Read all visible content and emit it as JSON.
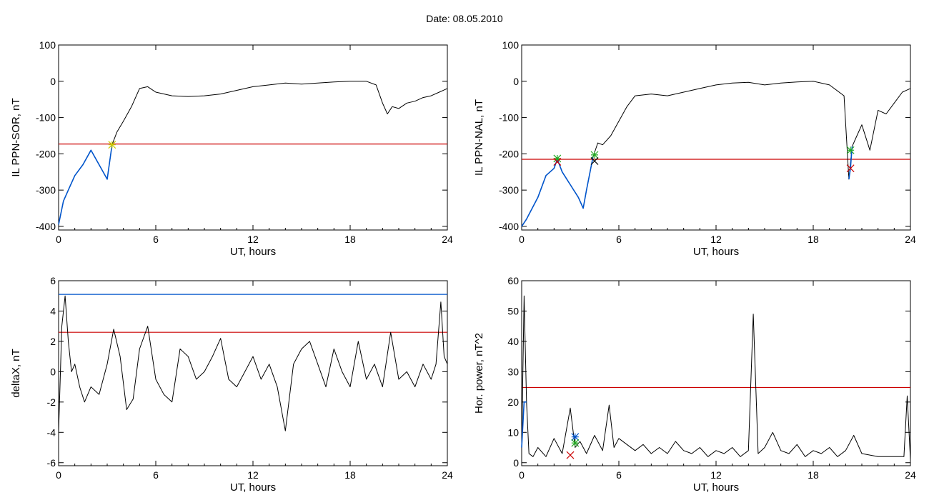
{
  "figure_title": "Date:  08.05.2010",
  "chart_data": [
    {
      "type": "line",
      "xlabel": "UT, hours",
      "ylabel": "IL PPN-SOR, nT",
      "xlim": [
        0,
        24
      ],
      "ylim": [
        -410,
        100
      ],
      "xticks": [
        "0",
        "6",
        "12",
        "18",
        "24"
      ],
      "yticks": [
        "-400",
        "-300",
        "-200",
        "-100",
        "0",
        "100"
      ],
      "threshold_lines": [
        {
          "y": -173,
          "color": "#cc0000"
        }
      ],
      "series": [
        {
          "color": "#000000",
          "x": [
            0,
            0.3,
            0.6,
            1,
            1.5,
            2,
            2.5,
            3,
            3.3,
            3.6,
            4,
            4.5,
            5,
            5.5,
            6,
            7,
            8,
            9,
            10,
            11,
            12,
            13,
            14,
            15,
            16,
            17,
            18,
            19,
            19.6,
            20,
            20.3,
            20.6,
            21,
            21.5,
            22,
            22.5,
            23,
            23.5,
            24
          ],
          "y": [
            -395,
            -330,
            -300,
            -260,
            -230,
            -190,
            -230,
            -270,
            -175,
            -140,
            -110,
            -70,
            -20,
            -15,
            -30,
            -40,
            -42,
            -40,
            -35,
            -25,
            -15,
            -10,
            -5,
            -8,
            -5,
            -2,
            0,
            0,
            -10,
            -60,
            -90,
            -70,
            -75,
            -60,
            -55,
            -45,
            -40,
            -30,
            -20
          ]
        },
        {
          "color": "#0055cc",
          "x": [
            0,
            0.3,
            0.6,
            1,
            1.5,
            2,
            2.5,
            3,
            3.3
          ],
          "y": [
            -395,
            -330,
            -300,
            -260,
            -230,
            -190,
            -230,
            -270,
            -175
          ]
        }
      ],
      "markers": [
        {
          "x": 3.3,
          "y": -175,
          "color": "#cccc00",
          "symbol": "*"
        }
      ]
    },
    {
      "type": "line",
      "xlabel": "UT, hours",
      "ylabel": "IL PPN-NAL, nT",
      "xlim": [
        0,
        24
      ],
      "ylim": [
        -410,
        100
      ],
      "xticks": [
        "0",
        "6",
        "12",
        "18",
        "24"
      ],
      "yticks": [
        "-400",
        "-300",
        "-200",
        "-100",
        "0",
        "100"
      ],
      "threshold_lines": [
        {
          "y": -215,
          "color": "#cc0000"
        }
      ],
      "series": [
        {
          "color": "#000000",
          "x": [
            0,
            0.3,
            1,
            1.5,
            2,
            2.2,
            2.5,
            3,
            3.5,
            3.8,
            4,
            4.4,
            4.7,
            5,
            5.5,
            6,
            6.5,
            7,
            8,
            9,
            10,
            11,
            12,
            13,
            14,
            15,
            16,
            17,
            18,
            19,
            19.9,
            20.2,
            20.4,
            20.6,
            21,
            21.5,
            22,
            22.5,
            23,
            23.5,
            24
          ],
          "y": [
            -400,
            -380,
            -320,
            -260,
            -240,
            -215,
            -250,
            -285,
            -320,
            -350,
            -300,
            -210,
            -170,
            -175,
            -150,
            -110,
            -70,
            -40,
            -35,
            -40,
            -30,
            -20,
            -10,
            -5,
            -3,
            -10,
            -5,
            -2,
            0,
            -10,
            -40,
            -270,
            -180,
            -160,
            -120,
            -190,
            -80,
            -90,
            -60,
            -30,
            -20
          ]
        },
        {
          "color": "#0055cc",
          "x": [
            0,
            0.3,
            1,
            1.5,
            2,
            2.2,
            2.5,
            3,
            3.5,
            3.8,
            4,
            4.4
          ],
          "y": [
            -400,
            -380,
            -320,
            -260,
            -240,
            -215,
            -250,
            -285,
            -320,
            -350,
            -300,
            -210
          ]
        },
        {
          "color": "#0055cc",
          "x": [
            20.2,
            20.3,
            20.4
          ],
          "y": [
            -270,
            -240,
            -180
          ]
        }
      ],
      "markers": [
        {
          "x": 2.2,
          "y": -213,
          "color": "#22aa22",
          "symbol": "*"
        },
        {
          "x": 2.2,
          "y": -222,
          "color": "#cc0000",
          "symbol": "x"
        },
        {
          "x": 4.5,
          "y": -203,
          "color": "#22aa22",
          "symbol": "*"
        },
        {
          "x": 4.5,
          "y": -220,
          "color": "#000000",
          "symbol": "x"
        },
        {
          "x": 20.3,
          "y": -190,
          "color": "#22aa22",
          "symbol": "*"
        },
        {
          "x": 20.3,
          "y": -240,
          "color": "#cc0000",
          "symbol": "x"
        }
      ]
    },
    {
      "type": "line",
      "xlabel": "UT, hours",
      "ylabel": "deltaX, nT",
      "xlim": [
        0,
        24
      ],
      "ylim": [
        -6.2,
        6
      ],
      "xticks": [
        "0",
        "6",
        "12",
        "18",
        "24"
      ],
      "yticks": [
        "-6",
        "-4",
        "-2",
        "0",
        "2",
        "4",
        "6"
      ],
      "threshold_lines": [
        {
          "y": 5.1,
          "color": "#0055cc"
        },
        {
          "y": 2.6,
          "color": "#cc0000"
        }
      ],
      "series": [
        {
          "color": "#000000",
          "x": [
            0,
            0.2,
            0.4,
            0.6,
            0.8,
            1,
            1.3,
            1.6,
            2,
            2.5,
            3,
            3.4,
            3.8,
            4.2,
            4.6,
            5,
            5.5,
            6,
            6.5,
            7,
            7.5,
            8,
            8.5,
            9,
            9.5,
            10,
            10.5,
            11,
            11.5,
            12,
            12.5,
            13,
            13.5,
            14,
            14.5,
            15,
            15.5,
            16,
            16.5,
            17,
            17.5,
            18,
            18.5,
            19,
            19.5,
            20,
            20.5,
            21,
            21.5,
            22,
            22.5,
            23,
            23.3,
            23.6,
            23.8,
            24
          ],
          "y": [
            -4,
            3,
            5,
            2,
            0,
            0.5,
            -1,
            -2,
            -1,
            -1.5,
            0.5,
            2.8,
            1,
            -2.5,
            -1.8,
            1.5,
            3,
            -0.5,
            -1.5,
            -2,
            1.5,
            1,
            -0.5,
            0,
            1,
            2.2,
            -0.5,
            -1,
            0,
            1,
            -0.5,
            0.5,
            -1,
            -3.9,
            0.5,
            1.5,
            2,
            0.5,
            -1,
            1.5,
            0,
            -1,
            2,
            -0.5,
            0.5,
            -1,
            2.6,
            -0.5,
            0,
            -1,
            0.5,
            -0.5,
            0.5,
            4.6,
            1,
            0.5
          ]
        }
      ],
      "markers": []
    },
    {
      "type": "line",
      "xlabel": "UT, hours",
      "ylabel": "Hor. power, nT^2",
      "xlim": [
        0,
        24
      ],
      "ylim": [
        -1,
        60
      ],
      "xticks": [
        "0",
        "6",
        "12",
        "18",
        "24"
      ],
      "yticks": [
        "0",
        "10",
        "20",
        "30",
        "40",
        "50",
        "60"
      ],
      "threshold_lines": [
        {
          "y": 24.8,
          "color": "#cc0000"
        }
      ],
      "series": [
        {
          "color": "#000000",
          "x": [
            0,
            0.15,
            0.3,
            0.45,
            0.7,
            1,
            1.5,
            2,
            2.5,
            3,
            3.3,
            3.6,
            4,
            4.5,
            5,
            5.4,
            5.7,
            6,
            6.5,
            7,
            7.5,
            8,
            8.5,
            9,
            9.5,
            10,
            10.5,
            11,
            11.5,
            12,
            12.5,
            13,
            13.5,
            14,
            14.3,
            14.6,
            15,
            15.5,
            16,
            16.5,
            17,
            17.5,
            18,
            18.5,
            19,
            19.5,
            20,
            20.5,
            21,
            22,
            23,
            23.6,
            23.8,
            24
          ],
          "y": [
            5,
            55,
            20,
            3,
            2,
            5,
            2,
            8,
            3,
            18,
            5,
            7,
            3,
            9,
            4,
            19,
            5,
            8,
            6,
            4,
            6,
            3,
            5,
            3,
            7,
            4,
            3,
            5,
            2,
            4,
            3,
            5,
            2,
            4,
            49,
            3,
            5,
            10,
            4,
            3,
            6,
            2,
            4,
            3,
            5,
            2,
            4,
            9,
            3,
            2,
            2,
            2,
            22,
            1
          ]
        },
        {
          "color": "#0055cc",
          "x": [
            0,
            0.15,
            0.3
          ],
          "y": [
            5,
            20,
            20
          ]
        }
      ],
      "markers": [
        {
          "x": 3.3,
          "y": 8.5,
          "color": "#0055cc",
          "symbol": "*"
        },
        {
          "x": 3.3,
          "y": 6.5,
          "color": "#22aa22",
          "symbol": "*"
        },
        {
          "x": 3.0,
          "y": 2.5,
          "color": "#cc0000",
          "symbol": "x"
        }
      ]
    }
  ]
}
